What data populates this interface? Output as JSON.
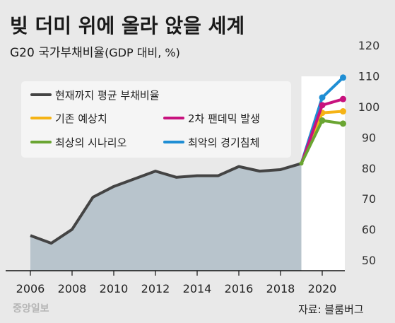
{
  "chart_data": {
    "type": "area",
    "title": "빚 더미 위에 올라 앉을 세계",
    "subtitle_main": "G20 국가부채비율",
    "subtitle_unit": "(GDP 대비, %)",
    "x_ticks": [
      "2006",
      "2008",
      "2010",
      "2012",
      "2014",
      "2016",
      "2018",
      "2020"
    ],
    "y_ticks": [
      "50",
      "60",
      "70",
      "80",
      "90",
      "100",
      "110",
      "120"
    ],
    "ylim": [
      50,
      120
    ],
    "xlim": [
      2005,
      2022
    ],
    "series": [
      {
        "name": "현재까지 평균 부채비율",
        "color": "#444444",
        "fill": "#b8c4cc",
        "x": [
          2006,
          2007,
          2008,
          2009,
          2010,
          2011,
          2012,
          2013,
          2014,
          2015,
          2016,
          2017,
          2018,
          2019
        ],
        "y": [
          58,
          55.5,
          60,
          70.5,
          74,
          76.5,
          79,
          77,
          77.5,
          77.5,
          80.5,
          79,
          79.5,
          81.5
        ]
      },
      {
        "name": "기존 예상치",
        "color": "#f5b315",
        "x": [
          2019,
          2020,
          2021
        ],
        "y": [
          81.5,
          98,
          98.5
        ]
      },
      {
        "name": "2차 팬데믹 발생",
        "color": "#c8127e",
        "x": [
          2019,
          2020,
          2021
        ],
        "y": [
          81.5,
          100.5,
          102.5
        ]
      },
      {
        "name": "최상의 시나리오",
        "color": "#6aa532",
        "x": [
          2019,
          2020,
          2021
        ],
        "y": [
          81.5,
          95.5,
          94.5
        ]
      },
      {
        "name": "최악의 경기침체",
        "color": "#1f8ed4",
        "x": [
          2019,
          2020,
          2021
        ],
        "y": [
          81.5,
          103,
          109.5
        ]
      }
    ],
    "grid": false,
    "legend_position": "top-left"
  },
  "source": "자료: 블룸버그",
  "logo": "중앙일보"
}
